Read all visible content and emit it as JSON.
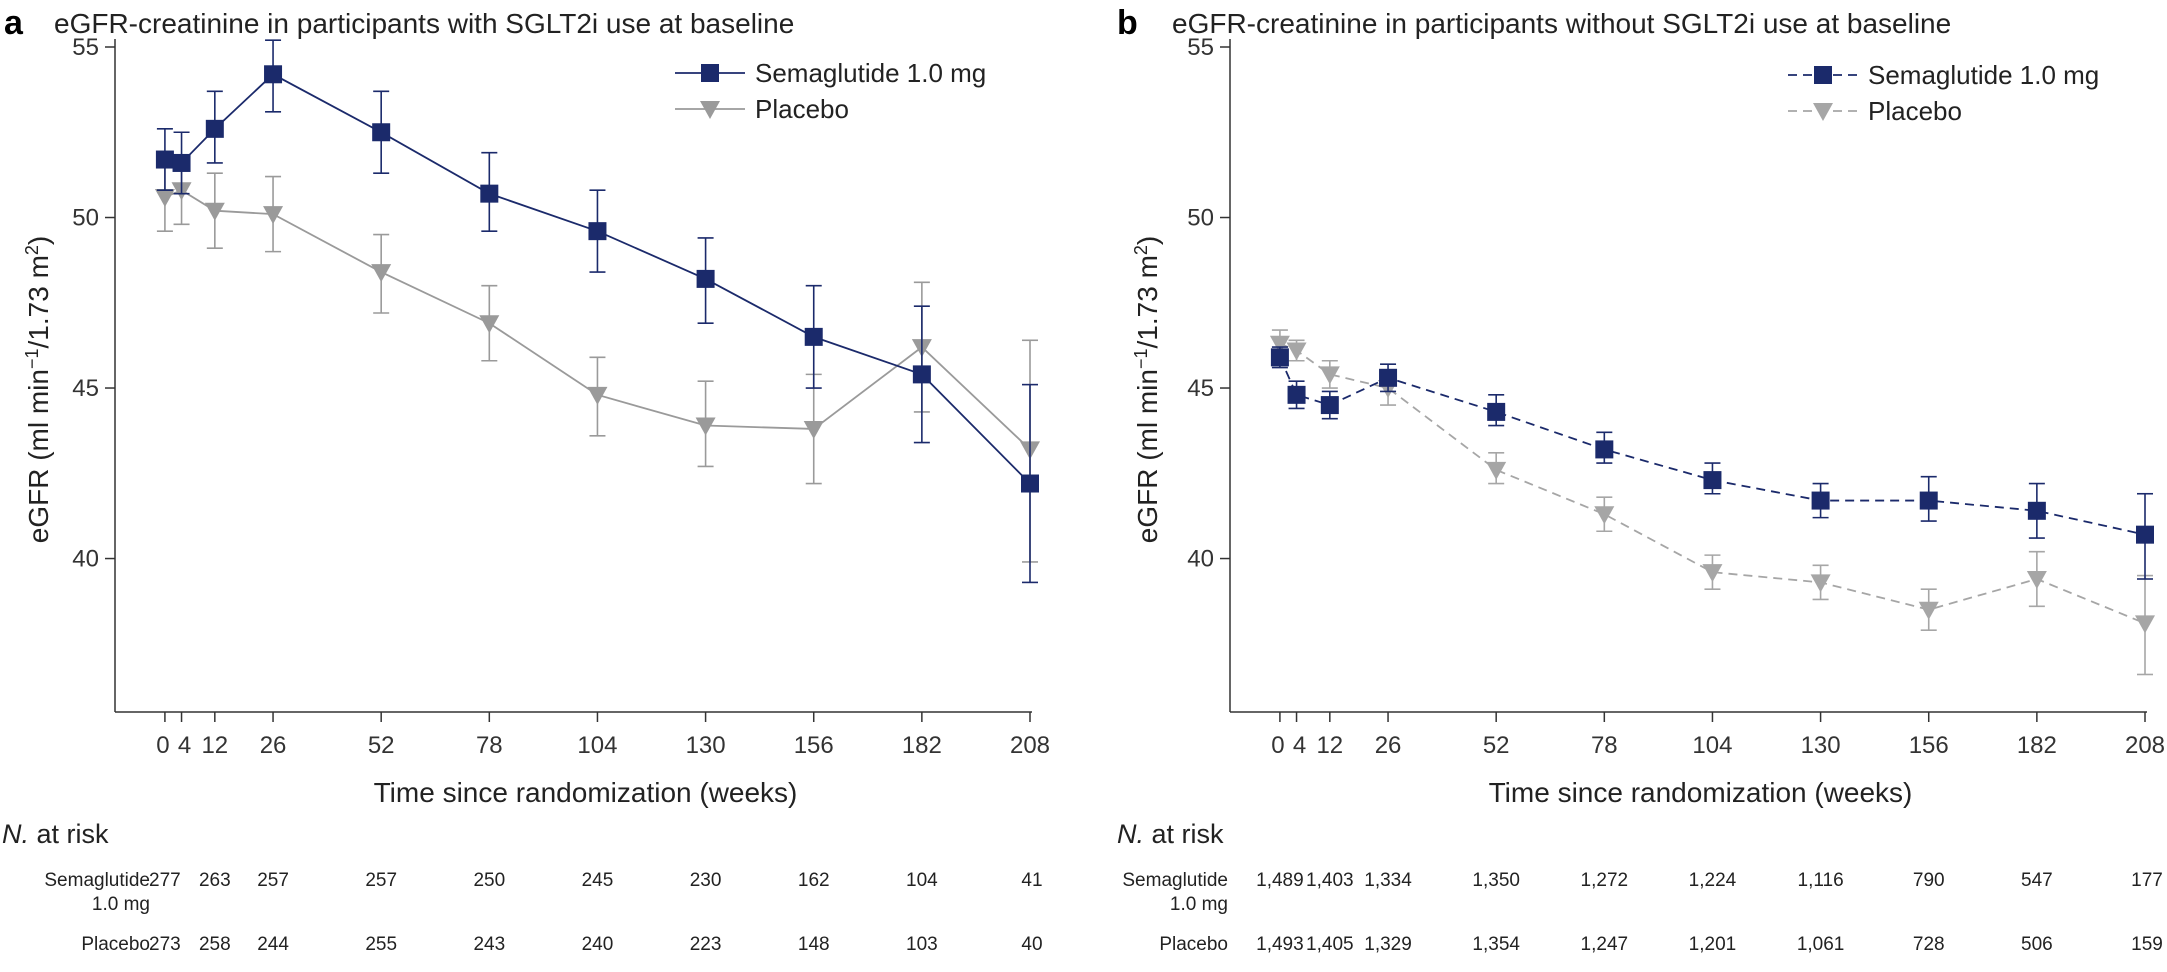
{
  "chart_data": [
    {
      "type": "line",
      "panel": "a",
      "title": "eGFR-creatinine in participants with SGLT2i use at baseline",
      "xlabel": "Time since randomization (weeks)",
      "ylabel_main": "eGFR (ml min",
      "ylabel_sup1": "−1",
      "ylabel_mid": "/1.73 m",
      "ylabel_sup2": "2",
      "ylabel_end": ")",
      "ylim": [
        35.5,
        55
      ],
      "xlim": [
        -12,
        208
      ],
      "y_ticks": [
        40,
        45,
        50,
        55
      ],
      "x_ticks": [
        0,
        4,
        12,
        26,
        52,
        78,
        104,
        130,
        156,
        182,
        208
      ],
      "x_tick_labels": [
        "0",
        "4",
        "12",
        "26",
        "52",
        "78",
        "104",
        "130",
        "156",
        "182",
        "208"
      ],
      "legend_position": "top-right",
      "series": [
        {
          "name": "Semaglutide 1.0 mg",
          "color": "#1b2a6b",
          "marker": "square",
          "dashed": false,
          "x": [
            0,
            4,
            12,
            26,
            52,
            78,
            104,
            130,
            156,
            182,
            208
          ],
          "y": [
            51.7,
            51.6,
            52.6,
            54.2,
            52.5,
            50.7,
            49.6,
            48.2,
            46.5,
            45.4,
            42.2
          ],
          "lower": [
            50.8,
            50.7,
            51.6,
            53.1,
            51.3,
            49.6,
            48.4,
            46.9,
            45.0,
            43.4,
            39.3
          ],
          "upper": [
            52.6,
            52.5,
            53.7,
            55.2,
            53.7,
            51.9,
            50.8,
            49.4,
            48.0,
            47.4,
            45.1
          ]
        },
        {
          "name": "Placebo",
          "color": "#9a9a9a",
          "marker": "triangle-down",
          "dashed": false,
          "x": [
            0,
            4,
            12,
            26,
            52,
            78,
            104,
            130,
            156,
            182,
            208
          ],
          "y": [
            50.6,
            50.8,
            50.2,
            50.1,
            48.4,
            46.9,
            44.8,
            43.9,
            43.8,
            46.2,
            43.2
          ],
          "lower": [
            49.6,
            49.8,
            49.1,
            49.0,
            47.2,
            45.8,
            43.6,
            42.7,
            42.2,
            44.3,
            39.9
          ],
          "upper": [
            51.6,
            51.8,
            51.3,
            51.2,
            49.5,
            48.0,
            45.9,
            45.2,
            45.4,
            48.1,
            46.4
          ]
        }
      ],
      "risk_table": {
        "heading_italic": "N.",
        "heading_rest": " at risk",
        "rows": [
          {
            "label_lines": [
              "Semaglutide",
              "1.0 mg"
            ],
            "values": [
              "277",
              "263",
              "257",
              "257",
              "250",
              "245",
              "230",
              "162",
              "104",
              "41"
            ],
            "x": [
              0,
              12,
              26,
              52,
              78,
              104,
              130,
              156,
              182,
              208
            ]
          },
          {
            "label_lines": [
              "Placebo"
            ],
            "values": [
              "273",
              "258",
              "244",
              "255",
              "243",
              "240",
              "223",
              "148",
              "103",
              "40"
            ],
            "x": [
              0,
              12,
              26,
              52,
              78,
              104,
              130,
              156,
              182,
              208
            ]
          }
        ]
      }
    },
    {
      "type": "line",
      "panel": "b",
      "title": "eGFR-creatinine in participants without SGLT2i use at baseline",
      "xlabel": "Time since randomization (weeks)",
      "ylabel_main": "eGFR (ml min",
      "ylabel_sup1": "−1",
      "ylabel_mid": "/1.73 m",
      "ylabel_sup2": "2",
      "ylabel_end": ")",
      "ylim": [
        35.5,
        55
      ],
      "xlim": [
        -12,
        208
      ],
      "y_ticks": [
        40,
        45,
        50,
        55
      ],
      "x_ticks": [
        0,
        4,
        12,
        26,
        52,
        78,
        104,
        130,
        156,
        182,
        208
      ],
      "x_tick_labels": [
        "0",
        "4",
        "12",
        "26",
        "52",
        "78",
        "104",
        "130",
        "156",
        "182",
        "208"
      ],
      "legend_position": "top-right",
      "series": [
        {
          "name": "Semaglutide 1.0 mg",
          "color": "#1b2a6b",
          "marker": "square",
          "dashed": true,
          "x": [
            0,
            4,
            12,
            26,
            52,
            78,
            104,
            130,
            156,
            182,
            208
          ],
          "y": [
            45.9,
            44.8,
            44.5,
            45.3,
            44.3,
            43.2,
            42.3,
            41.7,
            41.7,
            41.4,
            40.7
          ],
          "lower": [
            45.6,
            44.4,
            44.1,
            44.9,
            43.9,
            42.8,
            41.9,
            41.2,
            41.1,
            40.6,
            39.4
          ],
          "upper": [
            46.2,
            45.2,
            44.9,
            45.7,
            44.8,
            43.7,
            42.8,
            42.2,
            42.4,
            42.2,
            41.9
          ]
        },
        {
          "name": "Placebo",
          "color": "#a6a6a6",
          "marker": "triangle-down",
          "dashed": true,
          "x": [
            0,
            4,
            12,
            26,
            52,
            78,
            104,
            130,
            156,
            182,
            208
          ],
          "y": [
            46.3,
            46.1,
            45.4,
            45.0,
            42.6,
            41.3,
            39.6,
            39.3,
            38.5,
            39.4,
            38.1
          ],
          "lower": [
            45.9,
            45.8,
            45.0,
            44.5,
            42.2,
            40.8,
            39.1,
            38.8,
            37.9,
            38.6,
            36.6
          ],
          "upper": [
            46.7,
            46.4,
            45.8,
            45.5,
            43.1,
            41.8,
            40.1,
            39.8,
            39.1,
            40.2,
            39.5
          ]
        }
      ],
      "risk_table": {
        "heading_italic": "N.",
        "heading_rest": " at risk",
        "rows": [
          {
            "label_lines": [
              "Semaglutide",
              "1.0 mg"
            ],
            "values": [
              "1,489",
              "1,403",
              "1,334",
              "1,350",
              "1,272",
              "1,224",
              "1,116",
              "790",
              "547",
              "177"
            ],
            "x": [
              0,
              12,
              26,
              52,
              78,
              104,
              130,
              156,
              182,
              208
            ]
          },
          {
            "label_lines": [
              "Placebo"
            ],
            "values": [
              "1,493",
              "1,405",
              "1,329",
              "1,354",
              "1,247",
              "1,201",
              "1,061",
              "728",
              "506",
              "159"
            ],
            "x": [
              0,
              12,
              26,
              52,
              78,
              104,
              130,
              156,
              182,
              208
            ]
          }
        ]
      }
    }
  ]
}
